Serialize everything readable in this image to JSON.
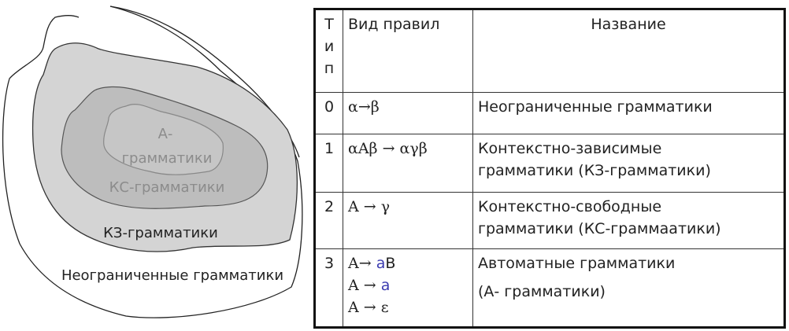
{
  "diagram": {
    "labels": {
      "a": "А-",
      "a2": "грамматики",
      "cf": "КС-грамматики",
      "cs": "КЗ-грамматики",
      "unrestricted": "Неограниченные грамматики"
    },
    "colors": {
      "cs_fill": "#d4d4d4",
      "cf_fill": "#bdbdbd",
      "a_fill": "#c6c6c6",
      "inner_text": "#8c8c8c"
    }
  },
  "table": {
    "headers": {
      "type": [
        "Т",
        "и",
        "п"
      ],
      "rule": "Вид правил",
      "name": "Название"
    },
    "rows": [
      {
        "type": "0",
        "rules": [
          "α→β"
        ],
        "name": [
          "Неограниченные грамматики"
        ]
      },
      {
        "type": "1",
        "rules": [
          "αAβ → αγβ"
        ],
        "name": [
          "Контекстно-зависимые",
          "грамматики (КЗ-грамматики)"
        ]
      },
      {
        "type": "2",
        "rules": [
          "A → γ"
        ],
        "name": [
          "Контекстно-свободные",
          "грамматики (КС-граммаатики)"
        ]
      },
      {
        "type": "3",
        "rules": [
          {
            "lhs": "A→ ",
            "terminal": "a",
            "rest": "B"
          },
          {
            "lhs": "A → ",
            "terminal": "a",
            "rest": ""
          },
          {
            "lhs": "A → ε",
            "terminal": "",
            "rest": ""
          }
        ],
        "name": [
          "Автоматные грамматики",
          "(А- грамматики)"
        ]
      }
    ],
    "terminal_color": "#3b3bb0"
  }
}
